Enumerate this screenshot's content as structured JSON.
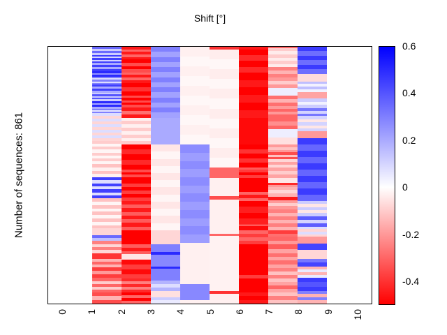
{
  "title": "Shift [°]",
  "ylabel": "Number of sequences: 861",
  "x_axis": {
    "tick_labels": [
      "0",
      "1",
      "2",
      "3",
      "4",
      "5",
      "6",
      "7",
      "8",
      "9",
      "10"
    ]
  },
  "colorbar": {
    "tick_labels": [
      "0.6",
      "0.4",
      "0.2",
      "0",
      "-0.2",
      "-0.4"
    ],
    "tick_values": [
      0.6,
      0.4,
      0.2,
      0,
      -0.2,
      -0.4
    ],
    "vmin": -0.5,
    "vmax": 0.6,
    "color_positive": "#0000ff",
    "color_zero": "#ffffff",
    "color_negative": "#ff0000"
  },
  "chart_data": {
    "type": "heatmap",
    "title": "Shift [°]",
    "ylabel": "Number of sequences: 861",
    "n_rows": 861,
    "plot_x_range": [
      -0.5,
      10.5
    ],
    "data_x_span": [
      1,
      9
    ],
    "value_range": [
      -0.5,
      0.6
    ],
    "legend_position": "right-colorbar",
    "grid": false,
    "note": "8 data columns spanning x=1..9; regions x<1 and x>9 are empty white. Each column entry: segments of fractional height; [h,v]=solid value, [h,v1,v2,n]=n alternating stripes between v1 and v2. Values in same units as colorbar (deg shift).",
    "columns": [
      {
        "x_span": "1-2",
        "segments": [
          [
            0.031,
            0.35,
            0.12,
            4
          ],
          [
            0.031,
            0.45,
            0.1,
            5
          ],
          [
            0.031,
            0.2,
            0.45,
            4
          ],
          [
            0.02,
            0.5,
            0.25,
            3
          ],
          [
            0.031,
            0.3,
            0.08,
            5
          ],
          [
            0.031,
            0.45,
            0.2,
            4
          ],
          [
            0.031,
            0.12,
            0.4,
            5
          ],
          [
            0.031,
            0.5,
            0.2,
            4
          ],
          [
            0.016,
            0.3,
            0.05,
            3
          ],
          [
            0.105,
            0.08,
            -0.08,
            10
          ],
          [
            0.089,
            -0.1,
            -0.02,
            8
          ],
          [
            0.049,
            -0.12,
            -0.03,
            4
          ],
          [
            0.081,
            0.45,
            0.08,
            7
          ],
          [
            0.114,
            -0.12,
            -0.02,
            9
          ],
          [
            0.026,
            -0.08
          ],
          [
            0.022,
            0.35,
            0.15,
            2
          ],
          [
            0.046,
            -0.25,
            -0.08,
            4
          ],
          [
            0.022,
            -0.4
          ],
          [
            0.032,
            -0.15,
            -0.3,
            3
          ],
          [
            0.041,
            -0.38,
            -0.2,
            3
          ],
          [
            0.054,
            -0.3,
            -0.1,
            5
          ],
          [
            0.043,
            -0.35,
            -0.15,
            3
          ]
        ]
      },
      {
        "x_span": "2-3",
        "segments": [
          [
            0.05,
            -0.45,
            -0.3,
            5
          ],
          [
            0.05,
            -0.5,
            -0.35,
            4
          ],
          [
            0.04,
            -0.3,
            -0.45,
            4
          ],
          [
            0.05,
            -0.5,
            -0.4,
            3
          ],
          [
            0.046,
            -0.35,
            -0.5,
            5
          ],
          [
            0.04,
            -0.45,
            -0.28,
            3
          ],
          [
            0.105,
            -0.03,
            -0.1,
            8
          ],
          [
            0.097,
            -0.5,
            -0.42,
            5
          ],
          [
            0.041,
            -0.35,
            -0.5,
            4
          ],
          [
            0.081,
            -0.5,
            -0.38,
            6
          ],
          [
            0.114,
            -0.45,
            -0.32,
            8
          ],
          [
            0.056,
            -0.5
          ],
          [
            0.038,
            -0.32,
            -0.45,
            3
          ],
          [
            0.022,
            -0.05
          ],
          [
            0.073,
            -0.48,
            -0.38,
            4
          ],
          [
            0.054,
            -0.42,
            -0.25,
            5
          ],
          [
            0.043,
            -0.5,
            -0.3,
            4
          ]
        ]
      },
      {
        "x_span": "3-4",
        "segments": [
          [
            0.276,
            0.3,
            0.22,
            14
          ],
          [
            0.105,
            0.2
          ],
          [
            0.333,
            -0.05,
            -0.02,
            12
          ],
          [
            0.056,
            -0.08
          ],
          [
            0.03,
            0.3
          ],
          [
            0.01,
            0.5
          ],
          [
            0.045,
            0.28
          ],
          [
            0.01,
            0.5
          ],
          [
            0.045,
            0.3
          ],
          [
            0.04,
            0.18,
            0.08,
            3
          ],
          [
            0.025,
            -0.06
          ],
          [
            0.025,
            0.12,
            0.05,
            2
          ]
        ]
      },
      {
        "x_span": "4-5",
        "segments": [
          [
            0.381,
            -0.03,
            -0.015,
            10
          ],
          [
            0.382,
            0.27,
            0.23,
            12
          ],
          [
            0.162,
            -0.03
          ],
          [
            0.061,
            0.28
          ],
          [
            0.014,
            -0.03
          ]
        ]
      },
      {
        "x_span": "5-6",
        "segments": [
          [
            0.011,
            -0.4
          ],
          [
            0.459,
            -0.035,
            -0.015,
            12
          ],
          [
            0.041,
            -0.3
          ],
          [
            0.071,
            -0.03
          ],
          [
            0.014,
            -0.35
          ],
          [
            0.131,
            -0.03
          ],
          [
            0.01,
            -0.3
          ],
          [
            0.215,
            -0.025
          ],
          [
            0.01,
            -0.4
          ],
          [
            0.038,
            -0.03
          ]
        ]
      },
      {
        "x_span": "6-7",
        "segments": [
          [
            0.011,
            -0.45
          ],
          [
            0.089,
            -0.5,
            -0.42,
            4
          ],
          [
            0.176,
            -0.5,
            -0.45,
            6
          ],
          [
            0.105,
            -0.48
          ],
          [
            0.089,
            -0.5,
            -0.4,
            5
          ],
          [
            0.008,
            -0.32
          ],
          [
            0.033,
            -0.38,
            -0.5,
            3
          ],
          [
            0.054,
            -0.5
          ],
          [
            0.035,
            -0.3,
            -0.45,
            3
          ],
          [
            0.092,
            -0.5,
            -0.44,
            4
          ],
          [
            0.005,
            -0.08
          ],
          [
            0.017,
            -0.48
          ],
          [
            0.056,
            -0.3,
            -0.38,
            4
          ],
          [
            0.119,
            -0.5
          ],
          [
            0.014,
            -0.38
          ],
          [
            0.054,
            -0.5
          ],
          [
            0.043,
            -0.45,
            -0.5,
            3
          ]
        ]
      },
      {
        "x_span": "7-8",
        "segments": [
          [
            0.005,
            -0.3
          ],
          [
            0.075,
            -0.1,
            -0.04,
            6
          ],
          [
            0.04,
            -0.25,
            -0.15,
            3
          ],
          [
            0.04,
            -0.2,
            -0.1,
            3
          ],
          [
            0.03,
            0.04
          ],
          [
            0.04,
            -0.28,
            -0.15,
            3
          ],
          [
            0.046,
            -0.2,
            -0.3,
            4
          ],
          [
            0.046,
            -0.3,
            -0.22,
            3
          ],
          [
            0.032,
            0.04
          ],
          [
            0.027,
            -0.06
          ],
          [
            0.03,
            -0.2,
            -0.12,
            3
          ],
          [
            0.027,
            -0.35,
            -0.12,
            3
          ],
          [
            0.032,
            -0.08,
            -0.18,
            3
          ],
          [
            0.041,
            -0.18,
            -0.1,
            3
          ],
          [
            0.019,
            -0.05
          ],
          [
            0.015,
            -0.42,
            -0.2,
            2
          ],
          [
            0.039,
            -0.15,
            -0.08,
            3
          ],
          [
            0.014,
            -0.45
          ],
          [
            0.034,
            -0.2,
            -0.1,
            3
          ],
          [
            0.082,
            -0.25,
            -0.15,
            6
          ],
          [
            0.026,
            -0.38,
            -0.28,
            2
          ],
          [
            0.03,
            -0.3,
            -0.2,
            2
          ],
          [
            0.019,
            -0.32
          ],
          [
            0.073,
            -0.18,
            -0.28,
            5
          ],
          [
            0.054,
            -0.25,
            -0.12,
            4
          ],
          [
            0.041,
            -0.18,
            -0.3,
            3
          ],
          [
            0.043,
            -0.12,
            -0.25,
            3
          ]
        ]
      },
      {
        "x_span": "8-9",
        "segments": [
          [
            0.105,
            0.46,
            0.34,
            6
          ],
          [
            0.03,
            -0.07
          ],
          [
            0.041,
            0.15,
            0.03,
            4
          ],
          [
            0.024,
            -0.18
          ],
          [
            0.04,
            0.12,
            0.03,
            3
          ],
          [
            0.03,
            0.32,
            0.1,
            3
          ],
          [
            0.06,
            0.1,
            -0.05,
            5
          ],
          [
            0.025,
            -0.2
          ],
          [
            0.245,
            0.46,
            0.36,
            10
          ],
          [
            0.06,
            0.12,
            -0.05,
            5
          ],
          [
            0.04,
            0.38,
            0.1,
            3
          ],
          [
            0.04,
            0.08,
            -0.08,
            4
          ],
          [
            0.025,
            -0.2
          ],
          [
            0.025,
            0.44
          ],
          [
            0.035,
            -0.08
          ],
          [
            0.03,
            0.32,
            0.44,
            2
          ],
          [
            0.045,
            -0.15,
            0.05,
            4
          ],
          [
            0.051,
            0.46,
            0.4,
            3
          ],
          [
            0.049,
            0.3,
            -0.15,
            4
          ]
        ]
      }
    ]
  }
}
